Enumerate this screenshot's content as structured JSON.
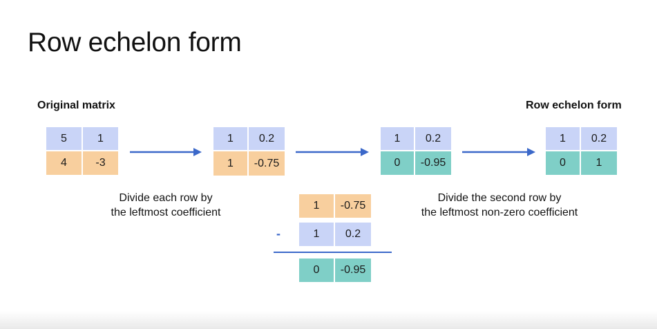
{
  "title": "Row echelon form",
  "labels": {
    "original": "Original matrix",
    "result": "Row echelon form"
  },
  "notes": {
    "step1": [
      "Divide each row by",
      "the leftmost coefficient"
    ],
    "step2": [
      "Divide the second row by",
      "the leftmost non-zero coefficient"
    ]
  },
  "matrices": {
    "original": {
      "rows": [
        [
          "5",
          "1"
        ],
        [
          "4",
          "-3"
        ]
      ]
    },
    "normalized": {
      "rows": [
        [
          "1",
          "0.2"
        ],
        [
          "1",
          "-0.75"
        ]
      ]
    },
    "reduced": {
      "rows": [
        [
          "1",
          "0.2"
        ],
        [
          "0",
          "-0.95"
        ]
      ]
    },
    "final": {
      "rows": [
        [
          "1",
          "0.2"
        ],
        [
          "0",
          "1"
        ]
      ]
    }
  },
  "subtraction": {
    "minuend": [
      "1",
      "-0.75"
    ],
    "operator": "-",
    "subtrahend": [
      "1",
      "0.2"
    ],
    "result": [
      "0",
      "-0.95"
    ]
  },
  "colors": {
    "blue_cell": "#c9d4f7",
    "orange_cell": "#f8cf9e",
    "teal_cell": "#7fcfc7",
    "arrow": "#3b68c9"
  }
}
